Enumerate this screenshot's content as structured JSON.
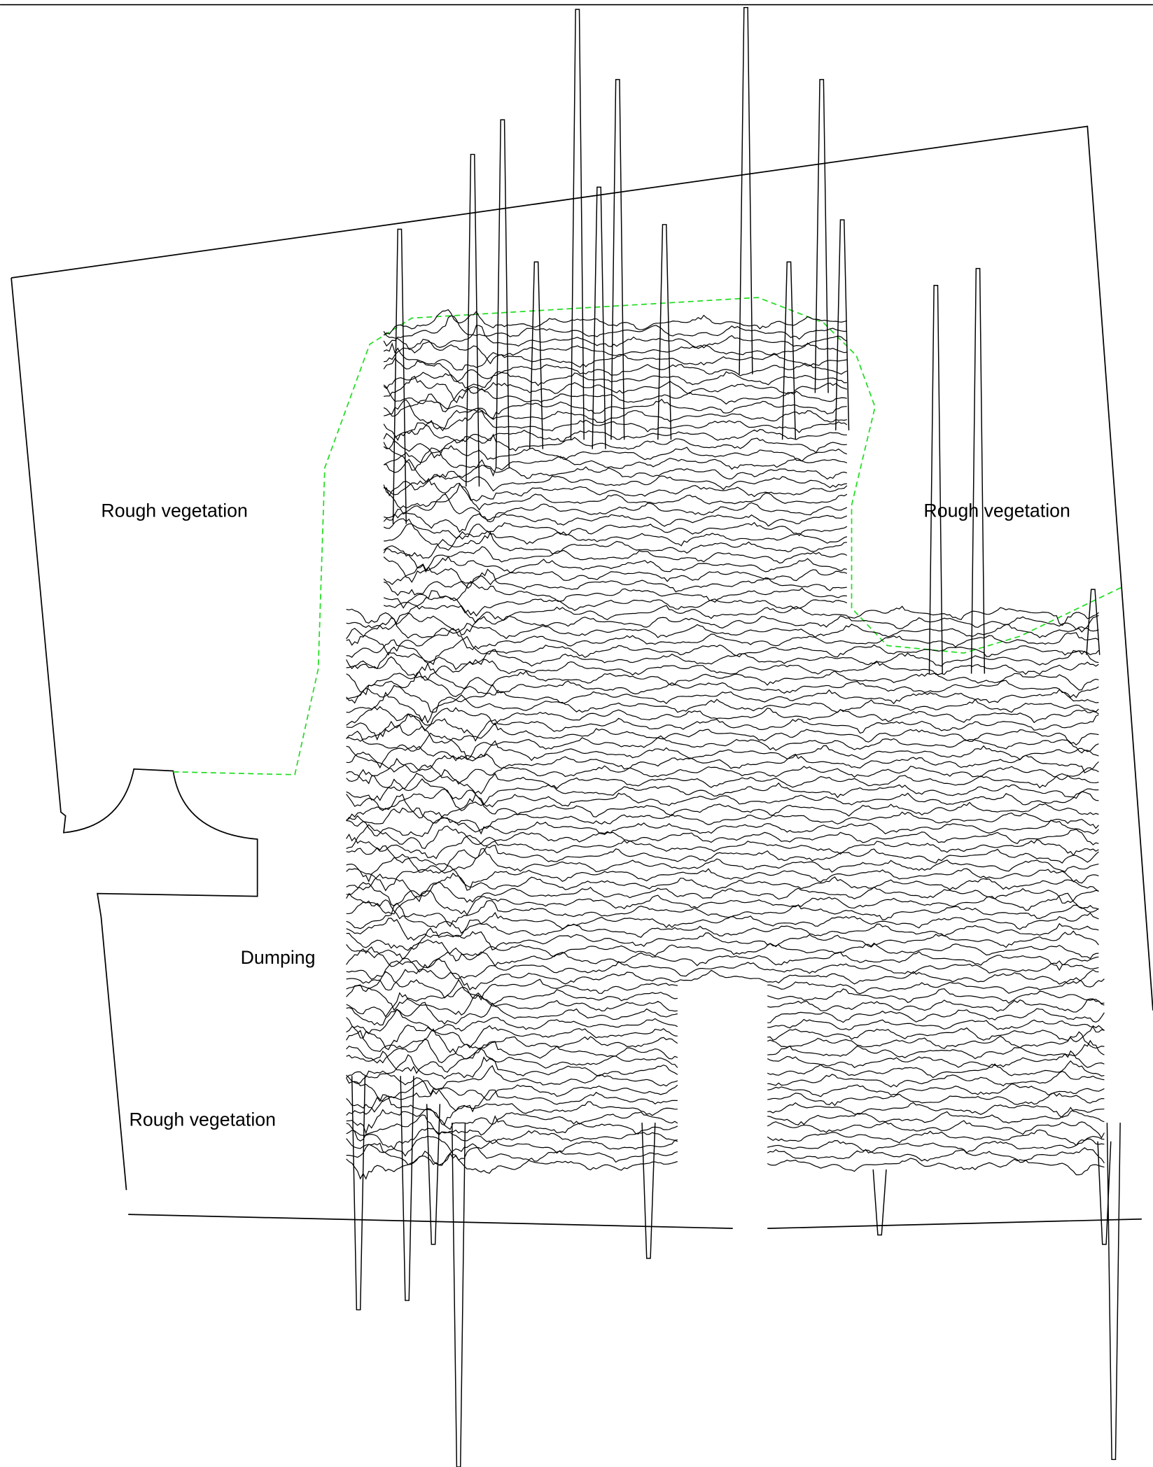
{
  "labels": [
    "Rough vegetation",
    "Rough vegetation",
    "Rough vegetation",
    "Dumping"
  ]
}
